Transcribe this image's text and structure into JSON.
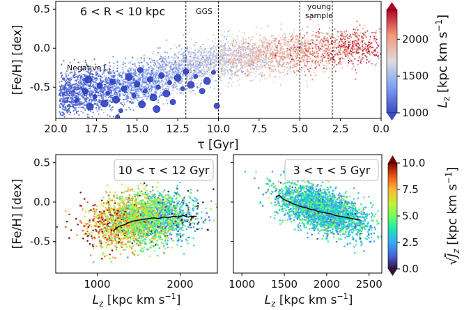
{
  "chart_data": [
    {
      "type": "scatter",
      "panel": "top",
      "title": "6 < R < 10 kpc",
      "xlabel": "τ [Gyr]",
      "ylabel": "[Fe/H] [dex]",
      "xlim": [
        20.0,
        0.0
      ],
      "ylim": [
        -0.9,
        0.6
      ],
      "xticks": [
        "20.0",
        "17.5",
        "15.0",
        "12.5",
        "10.0",
        "7.5",
        "5.0",
        "2.5",
        "0.0"
      ],
      "yticks": [
        "0.5",
        "0.0",
        "-0.5"
      ],
      "annotations": {
        "negative_lz": "Negative Lz",
        "ggs": "GGS",
        "young_line1": "young",
        "young_line2": "sample"
      },
      "vlines": [
        12,
        10,
        5,
        3
      ],
      "color_variable": "Lz",
      "colorbar": {
        "label": "Lz [kpc km s⁻¹]",
        "range": [
          1000,
          2400
        ],
        "ticks": [
          "2000",
          "1500",
          "1000"
        ],
        "colormap": "coolwarm"
      },
      "trend": {
        "description_points": [
          {
            "age": 19.5,
            "feh": -0.6
          },
          {
            "age": 15.0,
            "feh": -0.45
          },
          {
            "age": 10.0,
            "feh": -0.15
          },
          {
            "age": 5.0,
            "feh": -0.05
          },
          {
            "age": 1.0,
            "feh": 0.0
          }
        ]
      },
      "negative_lz_stars": [
        {
          "age": 18.7,
          "feh": -0.67
        },
        {
          "age": 18.2,
          "feh": -0.55
        },
        {
          "age": 17.9,
          "feh": -0.75
        },
        {
          "age": 17.6,
          "feh": -0.62
        },
        {
          "age": 17.3,
          "feh": -0.48
        },
        {
          "age": 17.0,
          "feh": -0.71
        },
        {
          "age": 16.8,
          "feh": -0.58
        },
        {
          "age": 16.5,
          "feh": -0.43
        },
        {
          "age": 16.3,
          "feh": -0.66
        },
        {
          "age": 16.0,
          "feh": -0.8
        },
        {
          "age": 15.8,
          "feh": -0.52
        },
        {
          "age": 15.5,
          "feh": -0.37
        },
        {
          "age": 15.2,
          "feh": -0.61
        },
        {
          "age": 15.0,
          "feh": -0.46
        },
        {
          "age": 14.7,
          "feh": -0.72
        },
        {
          "age": 14.5,
          "feh": -0.55
        },
        {
          "age": 14.2,
          "feh": -0.4
        },
        {
          "age": 14.0,
          "feh": -0.63
        },
        {
          "age": 13.7,
          "feh": -0.5
        },
        {
          "age": 13.5,
          "feh": -0.35
        },
        {
          "age": 13.2,
          "feh": -0.58
        },
        {
          "age": 13.0,
          "feh": -0.44
        },
        {
          "age": 12.8,
          "feh": -0.69
        },
        {
          "age": 12.5,
          "feh": -0.38
        },
        {
          "age": 12.2,
          "feh": -0.52
        },
        {
          "age": 12.0,
          "feh": -0.3
        },
        {
          "age": 11.7,
          "feh": -0.47
        },
        {
          "age": 11.4,
          "feh": -0.36
        },
        {
          "age": 11.0,
          "feh": -0.55
        },
        {
          "age": 10.7,
          "feh": -0.42
        },
        {
          "age": 10.3,
          "feh": -0.31
        },
        {
          "age": 10.1,
          "feh": -0.74
        },
        {
          "age": 18.0,
          "feh": -0.4
        },
        {
          "age": 16.2,
          "feh": -0.88
        },
        {
          "age": 14.8,
          "feh": -0.28
        },
        {
          "age": 13.8,
          "feh": -0.78
        }
      ]
    },
    {
      "type": "scatter",
      "panel": "bottom-left",
      "title": "10 < τ < 12 Gyr",
      "xlabel": "Lz [kpc km s⁻¹]",
      "ylabel": "[Fe/H] [dex]",
      "xlim": [
        500,
        2450
      ],
      "ylim": [
        -0.9,
        0.6
      ],
      "xticks": [
        "1000",
        "2000"
      ],
      "yticks": [
        "0.5",
        "0.0",
        "-0.5"
      ],
      "color_variable": "sqrt(Jz)",
      "median_line": {
        "x": [
          1200,
          1260,
          1320,
          1380,
          1440,
          1500,
          1560,
          1620,
          1680,
          1740,
          1800,
          1860,
          1920,
          1980,
          2040,
          2100,
          2160,
          2200
        ],
        "y": [
          -0.36,
          -0.31,
          -0.29,
          -0.26,
          -0.24,
          -0.23,
          -0.22,
          -0.21,
          -0.2,
          -0.21,
          -0.19,
          -0.2,
          -0.18,
          -0.19,
          -0.17,
          -0.19,
          -0.18,
          -0.18
        ]
      }
    },
    {
      "type": "scatter",
      "panel": "bottom-right",
      "title": "3 < τ < 5 Gyr",
      "xlabel": "Lz [kpc km s⁻¹]",
      "ylabel": "",
      "xlim": [
        900,
        2650
      ],
      "ylim": [
        -0.9,
        0.6
      ],
      "xticks": [
        "1000",
        "1500",
        "2000",
        "2500"
      ],
      "color_variable": "sqrt(Jz)",
      "colorbar": {
        "label": "√Jz [kpc km s⁻¹]",
        "range": [
          0.0,
          10.0
        ],
        "ticks": [
          "10.0",
          "7.5",
          "5.0",
          "2.5",
          "0.0"
        ],
        "colormap": "turbo"
      },
      "median_line": {
        "x": [
          1400,
          1440,
          1480,
          1520,
          1560,
          1600,
          1650,
          1700,
          1750,
          1800,
          1850,
          1900,
          1950,
          2000,
          2050,
          2100,
          2150,
          2200,
          2250,
          2300,
          2350,
          2400
        ],
        "y": [
          0.06,
          0.09,
          0.04,
          0.02,
          0.0,
          -0.02,
          -0.04,
          -0.06,
          -0.07,
          -0.09,
          -0.1,
          -0.12,
          -0.13,
          -0.14,
          -0.15,
          -0.17,
          -0.18,
          -0.19,
          -0.2,
          -0.21,
          -0.22,
          -0.23
        ]
      }
    }
  ]
}
